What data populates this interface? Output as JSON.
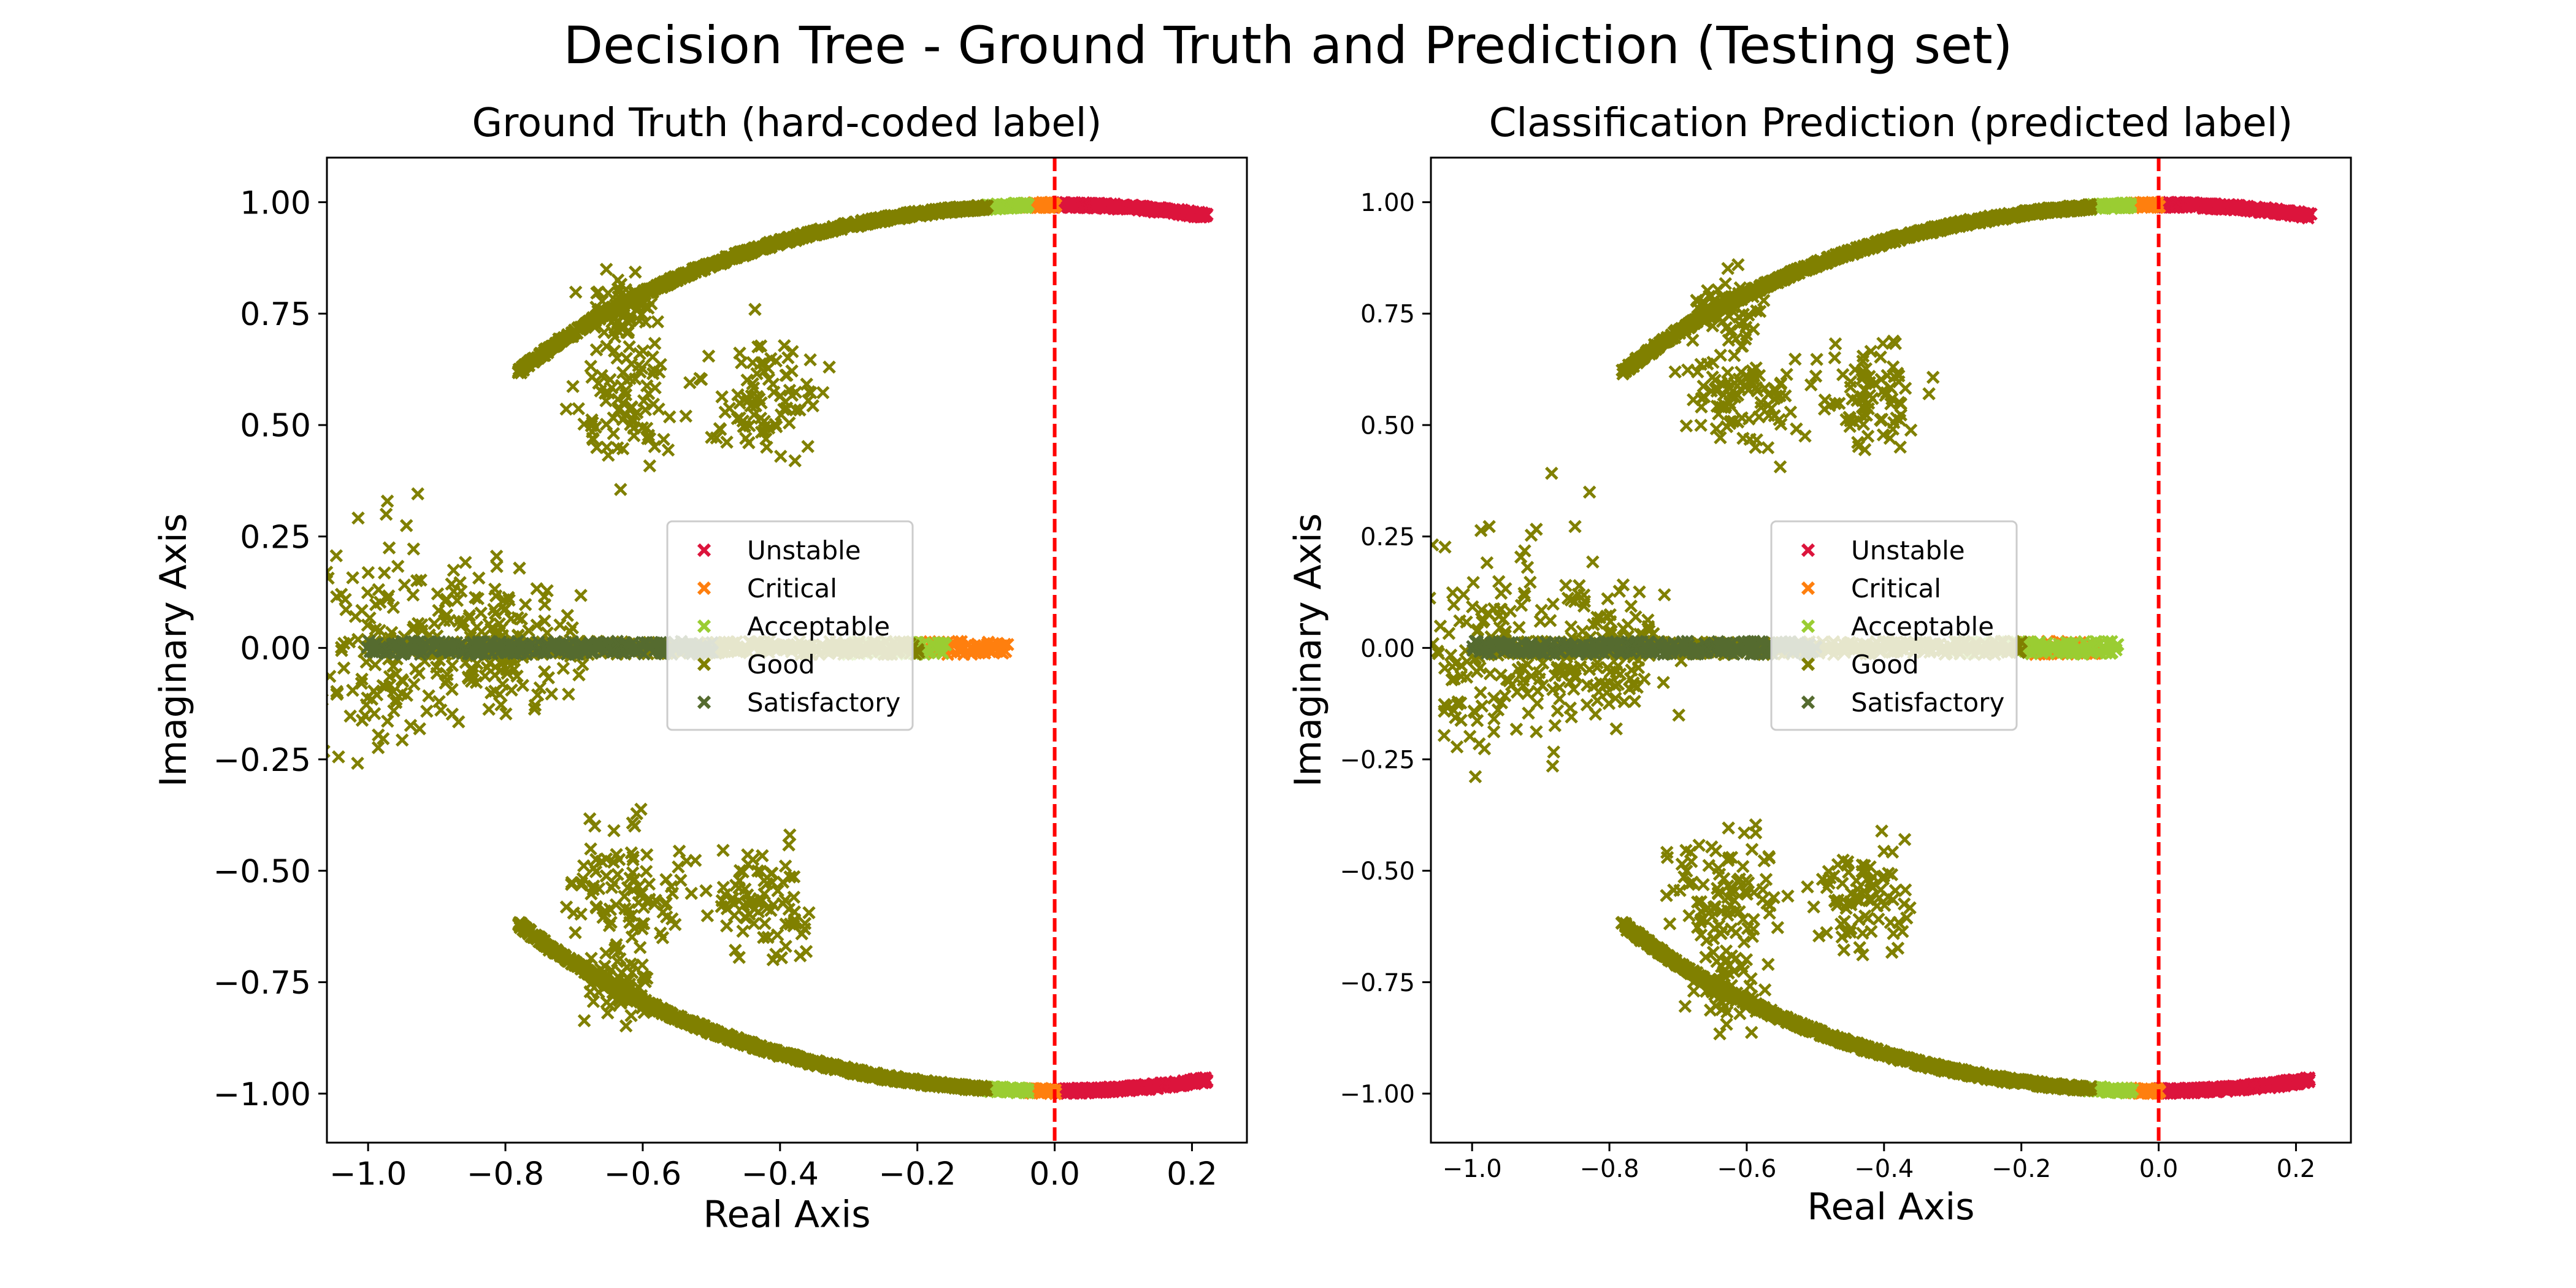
{
  "figure": {
    "suptitle": "Decision Tree - Ground Truth and Prediction (Testing set)"
  },
  "classes": [
    {
      "name": "Unstable",
      "color": "#dc143c"
    },
    {
      "name": "Critical",
      "color": "#ff7f0e"
    },
    {
      "name": "Acceptable",
      "color": "#9acd32"
    },
    {
      "name": "Good",
      "color": "#808000"
    },
    {
      "name": "Satisfactory",
      "color": "#556b2f"
    }
  ],
  "chart_data": [
    {
      "type": "scatter",
      "title": "Ground Truth (hard-coded label)",
      "xlabel": "Real Axis",
      "ylabel": "Imaginary Axis",
      "xlim": [
        -1.06,
        0.28
      ],
      "ylim": [
        -1.11,
        1.1
      ],
      "xticks": [
        -1.0,
        -0.8,
        -0.6,
        -0.4,
        -0.2,
        0.0,
        0.2
      ],
      "xtick_labels": [
        "−1.0",
        "−0.8",
        "−0.6",
        "−0.4",
        "−0.2",
        "0.0",
        "0.2"
      ],
      "yticks": [
        1.0,
        0.75,
        0.5,
        0.25,
        0.0,
        -0.25,
        -0.5,
        -0.75,
        -1.0
      ],
      "ytick_labels": [
        "1.00",
        "0.75",
        "0.50",
        "0.25",
        "0.00",
        "−0.25",
        "−0.50",
        "−0.75",
        "−1.00"
      ],
      "reference_line": {
        "x": 0.0,
        "color": "#ff0000",
        "style": "dashed"
      },
      "legend": {
        "placement": "center",
        "entries": [
          "Unstable",
          "Critical",
          "Acceptable",
          "Good",
          "Satisfactory"
        ]
      },
      "marker": "x",
      "grid": false,
      "series": [
        {
          "name": "Unstable",
          "arcs": [
            {
              "x_from": 0.0,
              "x_to": 0.22
            }
          ]
        },
        {
          "name": "Critical",
          "arcs": [
            {
              "x_from": -0.04,
              "x_to": 0.0
            }
          ],
          "real_axis": {
            "x_from": -0.2,
            "x_to": -0.07
          }
        },
        {
          "name": "Acceptable",
          "arcs": [
            {
              "x_from": -0.1,
              "x_to": -0.04
            }
          ],
          "real_axis": {
            "x_from": -0.3,
            "x_to": -0.16
          }
        },
        {
          "name": "Good",
          "arcs": [
            {
              "x_from": -0.78,
              "x_to": -0.1
            }
          ],
          "real_axis": {
            "x_from": -0.98,
            "x_to": -0.2
          },
          "clusters": [
            {
              "cx": -0.61,
              "cy": 0.56,
              "spread": 0.07
            },
            {
              "cx": -0.42,
              "cy": 0.56,
              "spread": 0.06
            },
            {
              "cx": -0.62,
              "cy": -0.55,
              "spread": 0.07
            },
            {
              "cx": -0.43,
              "cy": -0.57,
              "spread": 0.06
            },
            {
              "cx": -0.63,
              "cy": 0.76,
              "spread": 0.04
            },
            {
              "cx": -0.63,
              "cy": -0.76,
              "spread": 0.04
            },
            {
              "cx": -0.97,
              "cy": 0.0,
              "spread": 0.12
            },
            {
              "cx": -0.8,
              "cy": 0.0,
              "spread": 0.08
            }
          ]
        },
        {
          "name": "Satisfactory",
          "real_axis": {
            "x_from": -1.0,
            "x_to": -0.5
          }
        }
      ]
    },
    {
      "type": "scatter",
      "title": "Classification Prediction (predicted label)",
      "xlabel": "Real Axis",
      "ylabel": "Imaginary Axis",
      "xlim": [
        -1.06,
        0.28
      ],
      "ylim": [
        -1.11,
        1.1
      ],
      "xticks": [
        -1.0,
        -0.8,
        -0.6,
        -0.4,
        -0.2,
        0.0,
        0.2
      ],
      "xtick_labels": [
        "−1.0",
        "−0.8",
        "−0.6",
        "−0.4",
        "−0.2",
        "0.0",
        "0.2"
      ],
      "yticks": [
        1.0,
        0.75,
        0.5,
        0.25,
        0.0,
        -0.25,
        -0.5,
        -0.75,
        -1.0
      ],
      "ytick_labels": [
        "1.00",
        "0.75",
        "0.50",
        "0.25",
        "0.00",
        "−0.25",
        "−0.50",
        "−0.75",
        "−1.00"
      ],
      "reference_line": {
        "x": 0.0,
        "color": "#ff0000",
        "style": "dashed"
      },
      "legend": {
        "placement": "center",
        "entries": [
          "Unstable",
          "Critical",
          "Acceptable",
          "Good",
          "Satisfactory"
        ]
      },
      "marker": "x",
      "grid": false,
      "series": [
        {
          "name": "Unstable",
          "arcs": [
            {
              "x_from": 0.0,
              "x_to": 0.22
            }
          ]
        },
        {
          "name": "Critical",
          "arcs": [
            {
              "x_from": -0.04,
              "x_to": 0.0
            }
          ],
          "real_axis": {
            "x_from": -0.2,
            "x_to": -0.09
          }
        },
        {
          "name": "Acceptable",
          "arcs": [
            {
              "x_from": -0.1,
              "x_to": -0.04
            }
          ],
          "real_axis": {
            "x_from": -0.3,
            "x_to": -0.06
          }
        },
        {
          "name": "Good",
          "arcs": [
            {
              "x_from": -0.78,
              "x_to": -0.1
            }
          ],
          "real_axis": {
            "x_from": -0.98,
            "x_to": -0.2
          },
          "clusters": [
            {
              "cx": -0.61,
              "cy": 0.56,
              "spread": 0.07
            },
            {
              "cx": -0.42,
              "cy": 0.56,
              "spread": 0.06
            },
            {
              "cx": -0.62,
              "cy": -0.55,
              "spread": 0.07
            },
            {
              "cx": -0.43,
              "cy": -0.57,
              "spread": 0.06
            },
            {
              "cx": -0.63,
              "cy": 0.76,
              "spread": 0.04
            },
            {
              "cx": -0.63,
              "cy": -0.76,
              "spread": 0.04
            },
            {
              "cx": -0.97,
              "cy": 0.0,
              "spread": 0.12
            },
            {
              "cx": -0.8,
              "cy": 0.0,
              "spread": 0.08
            }
          ]
        },
        {
          "name": "Satisfactory",
          "real_axis": {
            "x_from": -1.0,
            "x_to": -0.5
          }
        }
      ]
    }
  ]
}
